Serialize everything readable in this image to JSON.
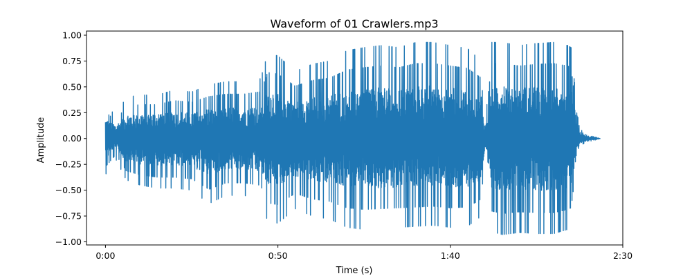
{
  "chart_data": {
    "type": "line",
    "title": "Waveform of 01 Crawlers.mp3",
    "xlabel": "Time (s)",
    "ylabel": "Amplitude",
    "xlim": [
      -5.5,
      150
    ],
    "ylim": [
      -1.03,
      1.04
    ],
    "x_ticks": [
      {
        "value": 0,
        "label": "0:00"
      },
      {
        "value": 50,
        "label": "0:50"
      },
      {
        "value": 100,
        "label": "1:40"
      },
      {
        "value": 150,
        "label": "2:30"
      }
    ],
    "y_ticks": [
      {
        "value": 1.0,
        "label": "1.00"
      },
      {
        "value": 0.75,
        "label": "0.75"
      },
      {
        "value": 0.5,
        "label": "0.50"
      },
      {
        "value": 0.25,
        "label": "0.25"
      },
      {
        "value": 0.0,
        "label": "0.00"
      },
      {
        "value": -0.25,
        "label": "−0.25"
      },
      {
        "value": -0.5,
        "label": "−0.50"
      },
      {
        "value": -0.75,
        "label": "−0.75"
      },
      {
        "value": -1.0,
        "label": "−1.00"
      }
    ],
    "grid": false,
    "series": [
      {
        "color": "#1f77b4",
        "envelope": {
          "time_s": [
            0,
            3,
            6,
            10,
            15,
            20,
            25,
            30,
            35,
            40,
            45,
            47,
            50,
            55,
            60,
            65,
            70,
            75,
            80,
            85,
            90,
            95,
            100,
            105,
            109,
            110,
            112,
            115,
            120,
            125,
            130,
            134,
            135,
            137,
            138,
            140,
            142,
            143.5
          ],
          "max": [
            0.33,
            0.22,
            0.4,
            0.42,
            0.42,
            0.47,
            0.45,
            0.52,
            0.55,
            0.55,
            0.58,
            0.82,
            0.8,
            0.65,
            0.72,
            0.75,
            0.85,
            0.88,
            0.9,
            0.88,
            0.93,
            0.93,
            0.9,
            0.87,
            0.75,
            0.2,
            0.93,
            0.93,
            0.9,
            0.92,
            0.93,
            0.9,
            0.88,
            0.2,
            0.08,
            0.03,
            0.015,
            0.0
          ],
          "min": [
            -0.35,
            -0.2,
            -0.4,
            -0.45,
            -0.48,
            -0.48,
            -0.5,
            -0.63,
            -0.55,
            -0.55,
            -0.58,
            -0.8,
            -0.82,
            -0.68,
            -0.75,
            -0.78,
            -0.86,
            -0.88,
            -0.87,
            -0.86,
            -0.85,
            -0.84,
            -0.86,
            -0.85,
            -0.75,
            -0.2,
            -0.9,
            -0.93,
            -0.91,
            -0.92,
            -0.92,
            -0.88,
            -0.86,
            -0.2,
            -0.08,
            -0.03,
            -0.015,
            0.0
          ]
        }
      }
    ]
  }
}
